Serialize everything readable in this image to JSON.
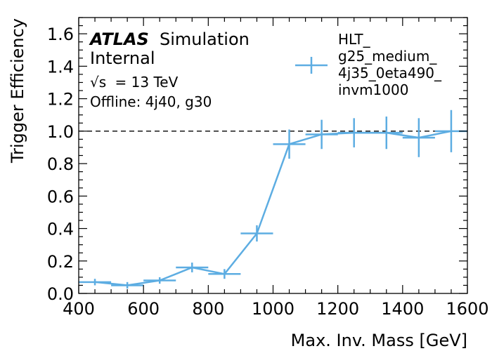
{
  "chart_data": {
    "type": "line",
    "xlabel": "Max. Inv. Mass [GeV]",
    "ylabel": "Trigger Efficiency",
    "xlim": [
      400,
      1600
    ],
    "ylim": [
      0,
      1.7
    ],
    "x_ticks": [
      400,
      600,
      800,
      1000,
      1200,
      1400,
      1600
    ],
    "y_ticks": [
      0.0,
      0.2,
      0.4,
      0.6,
      0.8,
      1.0,
      1.2,
      1.4,
      1.6
    ],
    "x_tick_labels": [
      "400",
      "600",
      "800",
      "1000",
      "1200",
      "1400",
      "1600"
    ],
    "y_tick_labels": [
      "0.0",
      "0.2",
      "0.4",
      "0.6",
      "0.8",
      "1.0",
      "1.2",
      "1.4",
      "1.6"
    ],
    "reference_line": 1.0,
    "legend_placement": "top-right",
    "annotations": {
      "experiment": "ATLAS",
      "label": "Simulation",
      "status": "Internal",
      "energy": "= 13 TeV",
      "energy_symbol": "√s",
      "selection": "Offline: 4j40, g30"
    },
    "series": [
      {
        "name": "HLT_ g25_medium_ 4j35_0eta490_ invm1000",
        "legend_lines": [
          "HLT_",
          "g25_medium_",
          "4j35_0eta490_",
          "invm1000"
        ],
        "color": "#5dade2",
        "points": [
          {
            "x": 450,
            "y": 0.07,
            "xerr": 50,
            "yerr": 0.02
          },
          {
            "x": 550,
            "y": 0.05,
            "xerr": 50,
            "yerr": 0.02
          },
          {
            "x": 650,
            "y": 0.08,
            "xerr": 50,
            "yerr": 0.02
          },
          {
            "x": 750,
            "y": 0.16,
            "xerr": 50,
            "yerr": 0.03
          },
          {
            "x": 850,
            "y": 0.12,
            "xerr": 50,
            "yerr": 0.03
          },
          {
            "x": 950,
            "y": 0.37,
            "xerr": 50,
            "yerr": 0.05
          },
          {
            "x": 1050,
            "y": 0.92,
            "xerr": 50,
            "yerr": 0.09
          },
          {
            "x": 1150,
            "y": 0.98,
            "xerr": 50,
            "yerr": 0.09
          },
          {
            "x": 1250,
            "y": 0.99,
            "xerr": 50,
            "yerr": 0.09
          },
          {
            "x": 1350,
            "y": 0.99,
            "xerr": 50,
            "yerr": 0.1
          },
          {
            "x": 1450,
            "y": 0.96,
            "xerr": 50,
            "yerr": 0.12
          },
          {
            "x": 1550,
            "y": 1.0,
            "xerr": 50,
            "yerr": 0.13
          }
        ]
      }
    ]
  }
}
